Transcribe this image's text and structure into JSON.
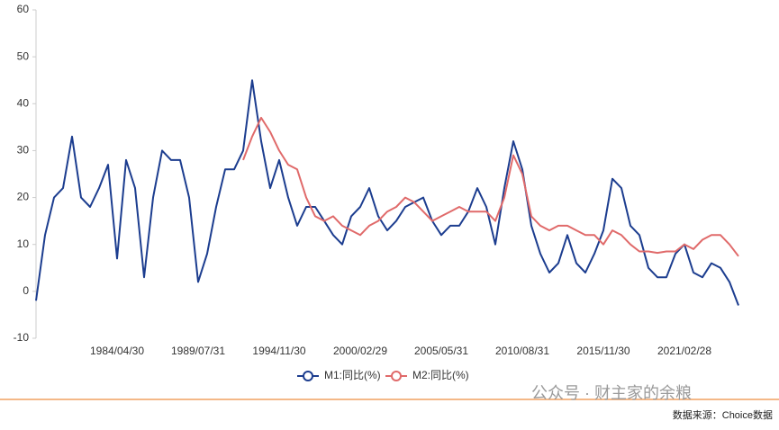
{
  "chart_data": {
    "type": "line",
    "categories": [
      null,
      null,
      null,
      null,
      null,
      null,
      null,
      null,
      null,
      "1984/04/30",
      null,
      null,
      null,
      null,
      null,
      null,
      null,
      null,
      "1989/07/31",
      null,
      null,
      null,
      null,
      null,
      null,
      null,
      null,
      "1994/11/30",
      null,
      null,
      null,
      null,
      null,
      null,
      null,
      null,
      "2000/02/29",
      null,
      null,
      null,
      null,
      null,
      null,
      null,
      null,
      "2005/05/31",
      null,
      null,
      null,
      null,
      null,
      null,
      null,
      null,
      "2010/08/31",
      null,
      null,
      null,
      null,
      null,
      null,
      null,
      null,
      "2015/11/30",
      null,
      null,
      null,
      null,
      null,
      null,
      null,
      null,
      "2021/02/28",
      null,
      null,
      null,
      null,
      null,
      null
    ],
    "series": [
      {
        "name": "M1:同比(%)",
        "color": "#1c3d8f",
        "values": [
          -2,
          12,
          20,
          22,
          33,
          20,
          18,
          22,
          27,
          7,
          28,
          22,
          3,
          20,
          30,
          28,
          28,
          20,
          2,
          8,
          18,
          26,
          26,
          30,
          45,
          32,
          22,
          28,
          20,
          14,
          18,
          18,
          15,
          12,
          10,
          16,
          18,
          22,
          16,
          13,
          15,
          18,
          19,
          20,
          15,
          12,
          14,
          14,
          17,
          22,
          18,
          10,
          22,
          32,
          26,
          14,
          8,
          4,
          6,
          12,
          6,
          4,
          8,
          13,
          24,
          22,
          14,
          12,
          5,
          3,
          3,
          8,
          10,
          4,
          3,
          6,
          5,
          2,
          -3
        ]
      },
      {
        "name": "M2:同比(%)",
        "color": "#e06a6a",
        "values": [
          null,
          null,
          null,
          null,
          null,
          null,
          null,
          null,
          null,
          null,
          null,
          null,
          null,
          null,
          null,
          null,
          null,
          null,
          null,
          null,
          null,
          null,
          null,
          28,
          33,
          37,
          34,
          30,
          27,
          26,
          20,
          16,
          15,
          16,
          14,
          13,
          12,
          14,
          15,
          17,
          18,
          20,
          19,
          17,
          15,
          16,
          17,
          18,
          17,
          17,
          17,
          15,
          20,
          29,
          25,
          16,
          14,
          13,
          14,
          14,
          13,
          12,
          12,
          10,
          13,
          12,
          10,
          8.5,
          8.5,
          8.2,
          8.5,
          8.5,
          10,
          9,
          11,
          12,
          12,
          10,
          7.5
        ]
      }
    ],
    "ylim": [
      -10,
      60
    ],
    "yticks": [
      -10,
      0,
      10,
      20,
      30,
      40,
      50,
      60
    ],
    "grid": false,
    "legend": "bottom",
    "watermark": "公众号 · 财主家的余粮",
    "source": "数据来源：Choice数据"
  }
}
